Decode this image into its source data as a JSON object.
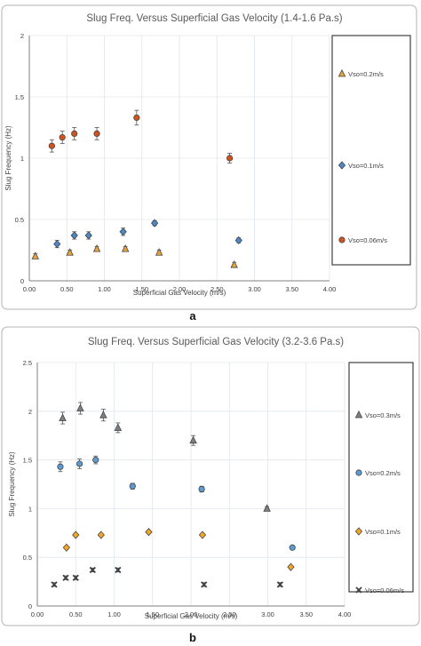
{
  "figure_labels": [
    "a",
    "b"
  ],
  "chart_data": [
    {
      "type": "scatter",
      "title": "Slug Freq. Versus Superficial Gas Velocity (1.4-1.6 Pa.s)",
      "xlabel": "Superficial Gas Velocity (m/s)",
      "ylabel": "Slug Frequency (Hz)",
      "xlim": [
        0,
        4
      ],
      "ylim": [
        0,
        2
      ],
      "xticks": [
        "0.00",
        "0.50",
        "1.00",
        "1.50",
        "2.00",
        "2.50",
        "3.00",
        "3.50",
        "4.00"
      ],
      "yticks": [
        "0",
        "0.5",
        "1",
        "1.5",
        "2"
      ],
      "grid": true,
      "legend_position": "right",
      "series": [
        {
          "name": "Vso=0.2m/s",
          "marker": "triangle",
          "color": "#e8a33a",
          "x": [
            0.08,
            0.54,
            0.9,
            1.28,
            1.73,
            2.73
          ],
          "y": [
            0.2,
            0.23,
            0.26,
            0.26,
            0.23,
            0.13
          ],
          "err": [
            0.02,
            0.02,
            0.02,
            0.02,
            0.02,
            0.02
          ]
        },
        {
          "name": "Vso=0.1m/s",
          "marker": "diamond",
          "color": "#4a88c8",
          "x": [
            0.37,
            0.6,
            0.79,
            1.25,
            1.67,
            2.79
          ],
          "y": [
            0.3,
            0.37,
            0.37,
            0.4,
            0.47,
            0.33
          ],
          "err": [
            0.03,
            0.03,
            0.03,
            0.03,
            0.02,
            0.02
          ]
        },
        {
          "name": "Vso=0.06m/s",
          "marker": "circle",
          "color": "#d0541c",
          "x": [
            0.3,
            0.44,
            0.6,
            0.9,
            1.43,
            2.67
          ],
          "y": [
            1.1,
            1.17,
            1.2,
            1.2,
            1.33,
            1.0
          ],
          "err": [
            0.05,
            0.05,
            0.05,
            0.05,
            0.06,
            0.04
          ]
        }
      ]
    },
    {
      "type": "scatter",
      "title": "Slug Freq. Versus Superficial Gas Velocity (3.2-3.6 Pa.s)",
      "xlabel": "Superficial Gas Velocity (m/s)",
      "ylabel": "Slug Frequency (Hz)",
      "xlim": [
        0,
        4
      ],
      "ylim": [
        0,
        2.5
      ],
      "xticks": [
        "0.00",
        "0.50",
        "1.00",
        "1.50",
        "2.00",
        "2.50",
        "3.00",
        "3.50",
        "4.00"
      ],
      "yticks": [
        "0",
        "0.5",
        "1",
        "1.5",
        "2",
        "2.5"
      ],
      "grid": true,
      "legend_position": "right",
      "series": [
        {
          "name": "Vso=0.3m/s",
          "marker": "triangle",
          "color": "#808080",
          "x": [
            0.33,
            0.56,
            0.86,
            1.05,
            2.03,
            2.99
          ],
          "y": [
            1.93,
            2.03,
            1.96,
            1.83,
            1.7,
            1.0
          ],
          "err": [
            0.06,
            0.06,
            0.06,
            0.05,
            0.05,
            0.02
          ]
        },
        {
          "name": "Vso=0.2m/s",
          "marker": "circle",
          "color": "#5b9bd5",
          "x": [
            0.3,
            0.55,
            0.76,
            1.24,
            2.14,
            3.32
          ],
          "y": [
            1.43,
            1.46,
            1.5,
            1.23,
            1.2,
            0.6
          ],
          "err": [
            0.05,
            0.05,
            0.04,
            0.03,
            0.03,
            0.02
          ]
        },
        {
          "name": "Vso=0.1m/s",
          "marker": "diamond",
          "color": "#f5a623",
          "x": [
            0.38,
            0.5,
            0.83,
            1.45,
            2.15,
            3.3
          ],
          "y": [
            0.6,
            0.73,
            0.73,
            0.76,
            0.73,
            0.4
          ],
          "err": [
            0,
            0,
            0,
            0,
            0,
            0
          ]
        },
        {
          "name": "Vso=0.06m/s",
          "marker": "x",
          "color": "#404040",
          "x": [
            0.22,
            0.37,
            0.5,
            0.72,
            1.05,
            2.17,
            3.16
          ],
          "y": [
            0.22,
            0.29,
            0.29,
            0.37,
            0.37,
            0.22,
            0.22
          ],
          "err": [
            0.02,
            0.02,
            0.02,
            0.02,
            0.02,
            0.02,
            0.02
          ]
        }
      ]
    }
  ]
}
